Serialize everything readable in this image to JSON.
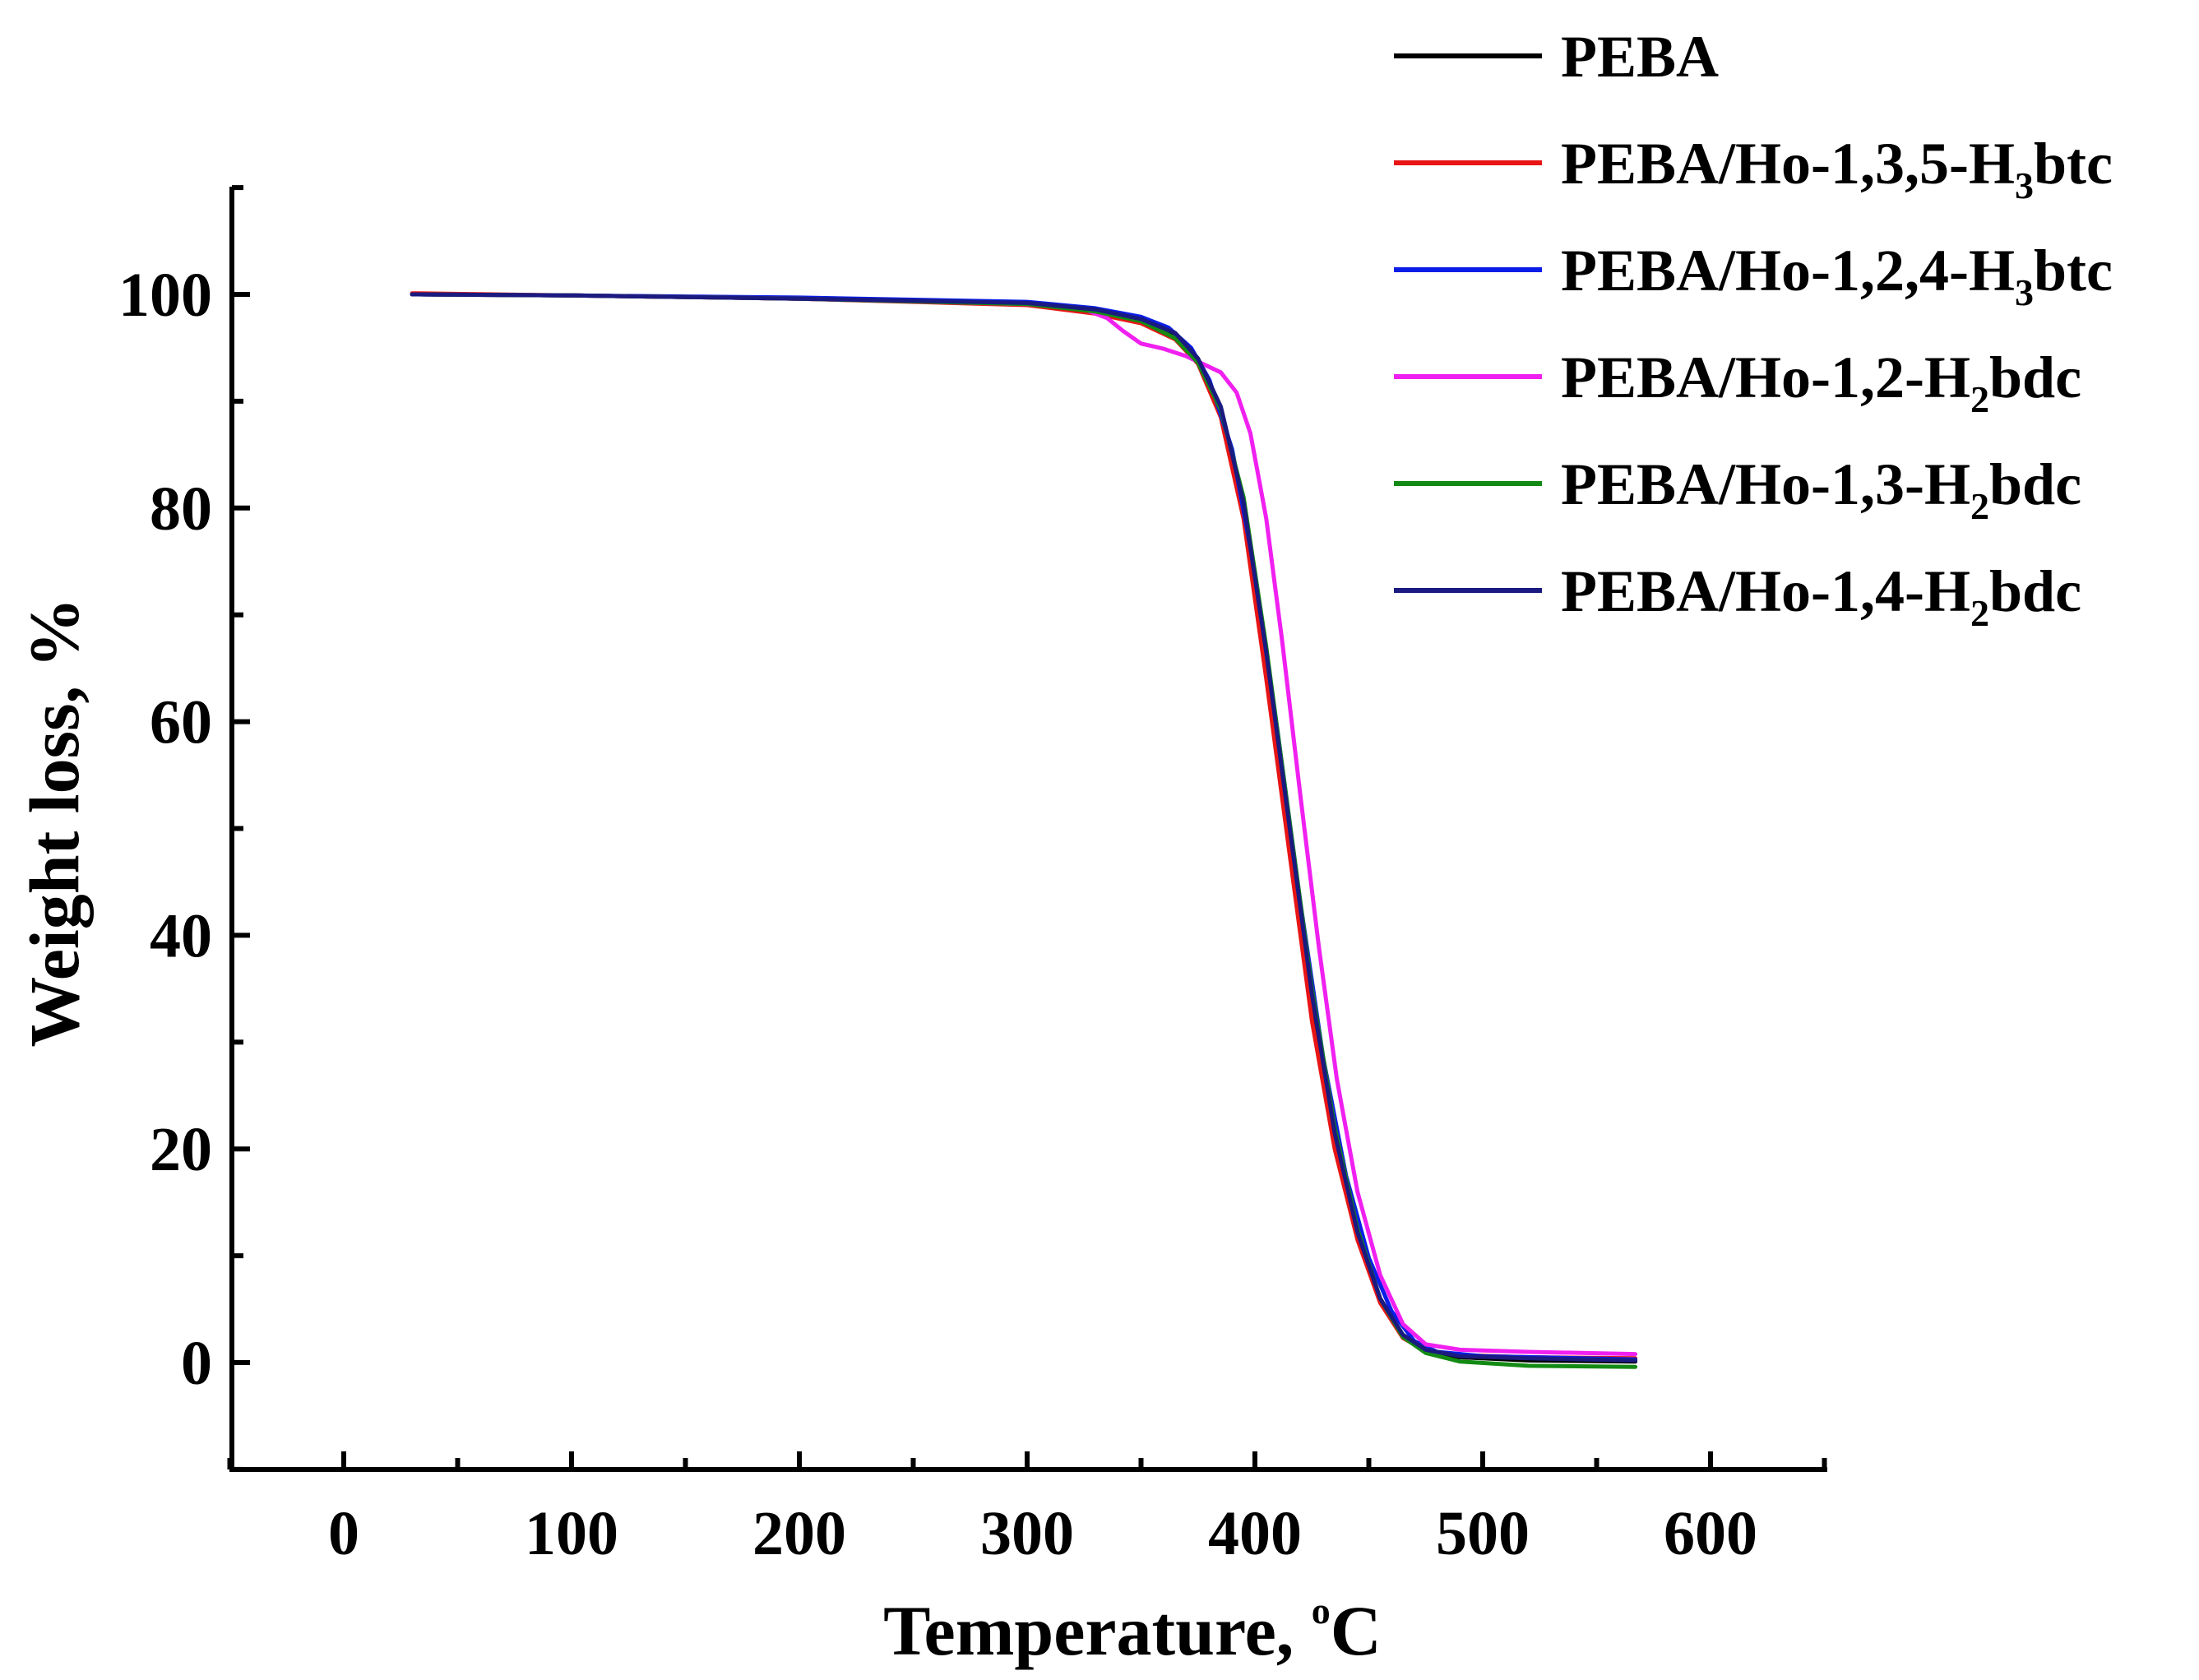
{
  "chart_data": {
    "type": "line",
    "title": "",
    "xlabel": "Temperature, ",
    "xlabel_sup": "o",
    "xlabel_unit": "C",
    "ylabel": "Weight loss, %",
    "xlim": [
      -50,
      650
    ],
    "ylim": [
      -10,
      110
    ],
    "xticks": [
      0,
      100,
      200,
      300,
      400,
      500,
      600
    ],
    "yticks": [
      0,
      20,
      40,
      60,
      80,
      100
    ],
    "grid": false,
    "legend_position": "top-right",
    "series": [
      {
        "name": "PEBA",
        "legend": {
          "pre": "PEBA",
          "sub": "",
          "post": ""
        },
        "color": "#000000",
        "points": [
          [
            30,
            100
          ],
          [
            100,
            99.9
          ],
          [
            200,
            99.6
          ],
          [
            300,
            99.1
          ],
          [
            330,
            98.4
          ],
          [
            350,
            97.6
          ],
          [
            365,
            96.2
          ],
          [
            375,
            93.8
          ],
          [
            385,
            89
          ],
          [
            395,
            80
          ],
          [
            405,
            66
          ],
          [
            415,
            50
          ],
          [
            425,
            34
          ],
          [
            435,
            21
          ],
          [
            445,
            12
          ],
          [
            455,
            6
          ],
          [
            465,
            2.5
          ],
          [
            475,
            1.1
          ],
          [
            490,
            0.5
          ],
          [
            520,
            0.2
          ],
          [
            567,
            0.1
          ]
        ]
      },
      {
        "name": "PEBA/Ho-1,3,5-H3btc",
        "legend": {
          "pre": "PEBA/Ho-1,3,5-H",
          "sub": "3",
          "post": "btc"
        },
        "color": "#e81515",
        "points": [
          [
            30,
            100.1
          ],
          [
            100,
            99.9
          ],
          [
            200,
            99.6
          ],
          [
            300,
            99
          ],
          [
            330,
            98.2
          ],
          [
            350,
            97.3
          ],
          [
            365,
            95.8
          ],
          [
            375,
            93.5
          ],
          [
            385,
            88.5
          ],
          [
            395,
            79
          ],
          [
            405,
            64
          ],
          [
            415,
            48
          ],
          [
            425,
            32
          ],
          [
            435,
            20
          ],
          [
            445,
            11.5
          ],
          [
            455,
            5.6
          ],
          [
            465,
            2.3
          ],
          [
            475,
            1.1
          ],
          [
            490,
            0.7
          ],
          [
            520,
            0.5
          ],
          [
            567,
            0.4
          ]
        ]
      },
      {
        "name": "PEBA/Ho-1,2,4-H3btc",
        "legend": {
          "pre": "PEBA/Ho-1,2,4-H",
          "sub": "3",
          "post": "btc"
        },
        "color": "#0a1ee8",
        "points": [
          [
            30,
            100
          ],
          [
            100,
            99.9
          ],
          [
            200,
            99.7
          ],
          [
            300,
            99.3
          ],
          [
            330,
            98.7
          ],
          [
            350,
            97.9
          ],
          [
            362,
            96.9
          ],
          [
            372,
            95
          ],
          [
            380,
            92
          ],
          [
            390,
            85.5
          ],
          [
            400,
            74
          ],
          [
            410,
            59
          ],
          [
            420,
            43
          ],
          [
            430,
            28.5
          ],
          [
            440,
            17.5
          ],
          [
            450,
            9.8
          ],
          [
            460,
            4.8
          ],
          [
            470,
            2
          ],
          [
            480,
            1
          ],
          [
            500,
            0.6
          ],
          [
            567,
            0.3
          ]
        ]
      },
      {
        "name": "PEBA/Ho-1,2-H2bdc",
        "legend": {
          "pre": "PEBA/Ho-1,2-H",
          "sub": "2",
          "post": "bdc"
        },
        "color": "#f020f0",
        "points": [
          [
            30,
            100
          ],
          [
            100,
            99.9
          ],
          [
            200,
            99.6
          ],
          [
            300,
            99.1
          ],
          [
            325,
            98.6
          ],
          [
            335,
            97.8
          ],
          [
            342,
            96.6
          ],
          [
            350,
            95.4
          ],
          [
            360,
            94.9
          ],
          [
            370,
            94.2
          ],
          [
            378,
            93.4
          ],
          [
            385,
            92.7
          ],
          [
            392,
            90.8
          ],
          [
            398,
            87
          ],
          [
            405,
            79
          ],
          [
            412,
            67.5
          ],
          [
            420,
            53
          ],
          [
            428,
            39
          ],
          [
            436,
            26.5
          ],
          [
            445,
            16
          ],
          [
            455,
            8.2
          ],
          [
            465,
            3.6
          ],
          [
            475,
            1.7
          ],
          [
            490,
            1.2
          ],
          [
            520,
            1
          ],
          [
            567,
            0.8
          ]
        ]
      },
      {
        "name": "PEBA/Ho-1,3-H2bdc",
        "legend": {
          "pre": "PEBA/Ho-1,3-H",
          "sub": "2",
          "post": "bdc"
        },
        "color": "#138a13",
        "points": [
          [
            30,
            100
          ],
          [
            100,
            99.9
          ],
          [
            200,
            99.6
          ],
          [
            300,
            99.1
          ],
          [
            330,
            98.4
          ],
          [
            350,
            97.5
          ],
          [
            365,
            95.9
          ],
          [
            375,
            93.6
          ],
          [
            385,
            89.2
          ],
          [
            395,
            81
          ],
          [
            405,
            67
          ],
          [
            415,
            51
          ],
          [
            425,
            35
          ],
          [
            435,
            22
          ],
          [
            445,
            12.5
          ],
          [
            455,
            6
          ],
          [
            465,
            2.4
          ],
          [
            475,
            0.9
          ],
          [
            490,
            0.1
          ],
          [
            520,
            -0.3
          ],
          [
            567,
            -0.4
          ]
        ]
      },
      {
        "name": "PEBA/Ho-1,4-H2bdc",
        "legend": {
          "pre": "PEBA/Ho-1,4-H",
          "sub": "2",
          "post": "bdc"
        },
        "color": "#1a1a80",
        "points": [
          [
            30,
            100
          ],
          [
            100,
            99.9
          ],
          [
            200,
            99.6
          ],
          [
            300,
            99.2
          ],
          [
            330,
            98.6
          ],
          [
            350,
            97.7
          ],
          [
            365,
            96.4
          ],
          [
            375,
            94
          ],
          [
            385,
            89.5
          ],
          [
            395,
            80.5
          ],
          [
            405,
            66.5
          ],
          [
            415,
            50.5
          ],
          [
            425,
            34.5
          ],
          [
            435,
            21.5
          ],
          [
            445,
            12.2
          ],
          [
            455,
            6
          ],
          [
            465,
            2.6
          ],
          [
            475,
            1.2
          ],
          [
            490,
            0.6
          ],
          [
            520,
            0.4
          ],
          [
            567,
            0.2
          ]
        ]
      }
    ]
  }
}
